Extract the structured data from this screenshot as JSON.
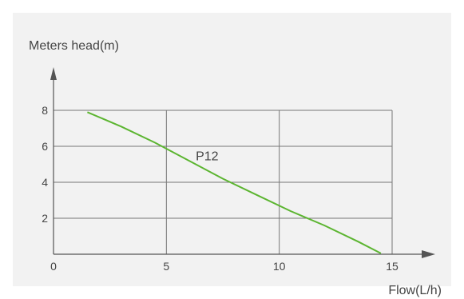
{
  "chart_data": {
    "type": "line",
    "title": "",
    "xlabel": "Flow(L/h)",
    "ylabel": "Meters head(m)",
    "xlim": [
      0,
      15
    ],
    "ylim": [
      0,
      8
    ],
    "x_ticks": [
      "0",
      "5",
      "10",
      "15"
    ],
    "y_ticks": [
      "2",
      "4",
      "6",
      "8"
    ],
    "grid": true,
    "series": [
      {
        "name": "P12",
        "color": "#5cb531",
        "x": [
          1.5,
          3.0,
          4.5,
          6.0,
          7.5,
          9.0,
          10.5,
          12.0,
          13.5,
          14.5
        ],
        "y": [
          7.9,
          7.1,
          6.2,
          5.2,
          4.2,
          3.3,
          2.4,
          1.6,
          0.7,
          0.05
        ]
      }
    ],
    "annotations": [
      {
        "text": "P12",
        "x": 6.3,
        "y": 5.5
      }
    ]
  }
}
